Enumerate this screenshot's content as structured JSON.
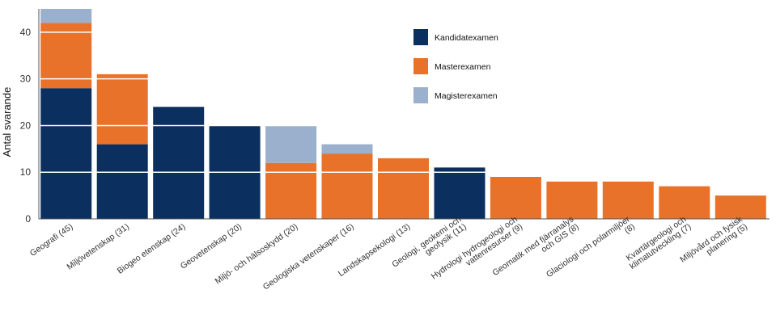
{
  "chart_data": {
    "type": "bar",
    "stacked": true,
    "ylabel": "Antal svarande",
    "xlabel": "",
    "ylim": [
      0,
      45
    ],
    "yticks": [
      0,
      10,
      20,
      30,
      40
    ],
    "grid": true,
    "legend_position": "top-right",
    "categories": [
      [
        "Geografi (45)"
      ],
      [
        "Miljövetenskap (31)"
      ],
      [
        "Biogeo etenskap (24)"
      ],
      [
        "Geovetenskap (20)"
      ],
      [
        "Miljö- och hälsoskydd (20)"
      ],
      [
        "Geologiska vetenskaper (16)"
      ],
      [
        "Landskapsekologi (13)"
      ],
      [
        "Geologi, geokemi och",
        "geofysik (11)"
      ],
      [
        "Hydrologi hydrogeologi och",
        "vattenresurser (9)"
      ],
      [
        "Geomatik med fjärranalys",
        "och GIS (8)"
      ],
      [
        "Glaciologi och polarmiljöer",
        "(8)"
      ],
      [
        "Kvartärgeologi och",
        "klimatutveckling (7)"
      ],
      [
        "Miljövård och fysisk",
        "planering (5)"
      ]
    ],
    "series": [
      {
        "name": "Kandidatexamen",
        "color": "#0b2f5e",
        "values": [
          28,
          16,
          24,
          20,
          0,
          0,
          0,
          11,
          0,
          0,
          0,
          0,
          0
        ]
      },
      {
        "name": "Masterexamen",
        "color": "#e8722a",
        "values": [
          14,
          15,
          0,
          0,
          12,
          14,
          13,
          0,
          9,
          8,
          8,
          7,
          5
        ]
      },
      {
        "name": "Magisterexamen",
        "color": "#9bb0cc",
        "values": [
          3,
          0,
          0,
          0,
          8,
          2,
          0,
          0,
          0,
          0,
          0,
          0,
          0
        ]
      }
    ]
  }
}
